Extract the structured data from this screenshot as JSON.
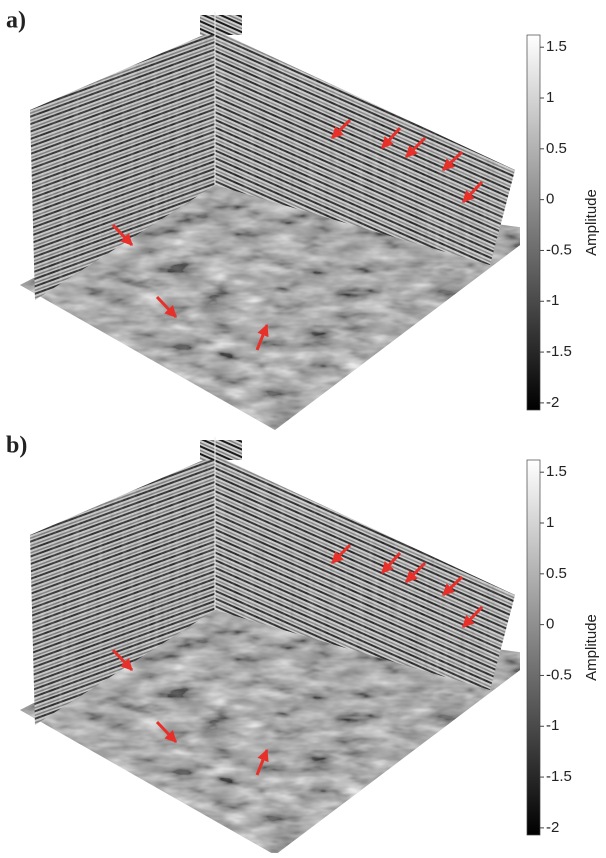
{
  "chart_data": [
    {
      "type": "seismic-cube",
      "panel_label": "a)",
      "colorbar_label": "Amplitude",
      "clim": [
        -2.07,
        1.62
      ],
      "colorbar_ticks": [
        1.5,
        1,
        0.5,
        0,
        -0.5,
        -1,
        -1.5,
        -2
      ],
      "colormap": [
        "#000000",
        "#ffffff"
      ]
    },
    {
      "type": "seismic-cube",
      "panel_label": "b)",
      "colorbar_label": "Amplitude",
      "clim": [
        -2.07,
        1.62
      ],
      "colorbar_ticks": [
        1.5,
        1,
        0.5,
        0,
        -0.5,
        -1,
        -1.5,
        -2
      ],
      "colormap": [
        "#000000",
        "#ffffff"
      ]
    }
  ]
}
